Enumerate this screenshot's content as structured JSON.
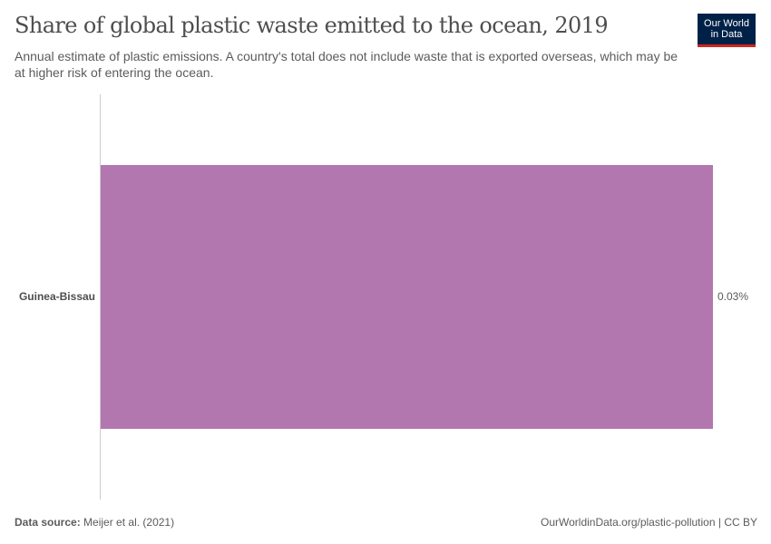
{
  "header": {
    "title": "Share of global plastic waste emitted to the ocean, 2019",
    "subtitle": "Annual estimate of plastic emissions. A country's total does not include waste that is exported overseas, which may be at higher risk of entering the ocean."
  },
  "logo": {
    "line1": "Our World",
    "line2": "in Data",
    "bg_color": "#002147",
    "accent_color": "#ce261e"
  },
  "footer": {
    "source_label": "Data source:",
    "source_value": "Meijer et al. (2021)",
    "credit": "OurWorldinData.org/plastic-pollution | CC BY"
  },
  "chart_data": {
    "type": "bar",
    "orientation": "horizontal",
    "title": "Share of global plastic waste emitted to the ocean, 2019",
    "subtitle": "Annual estimate of plastic emissions. A country's total does not include waste that is exported overseas, which may be at higher risk of entering the ocean.",
    "categories": [
      "Guinea-Bissau"
    ],
    "values": [
      0.03
    ],
    "value_labels": [
      "0.03%"
    ],
    "unit": "%",
    "bar_color": "#b377af",
    "xlabel": "",
    "ylabel": "",
    "grid": false,
    "legend": null,
    "source": "Meijer et al. (2021)"
  }
}
